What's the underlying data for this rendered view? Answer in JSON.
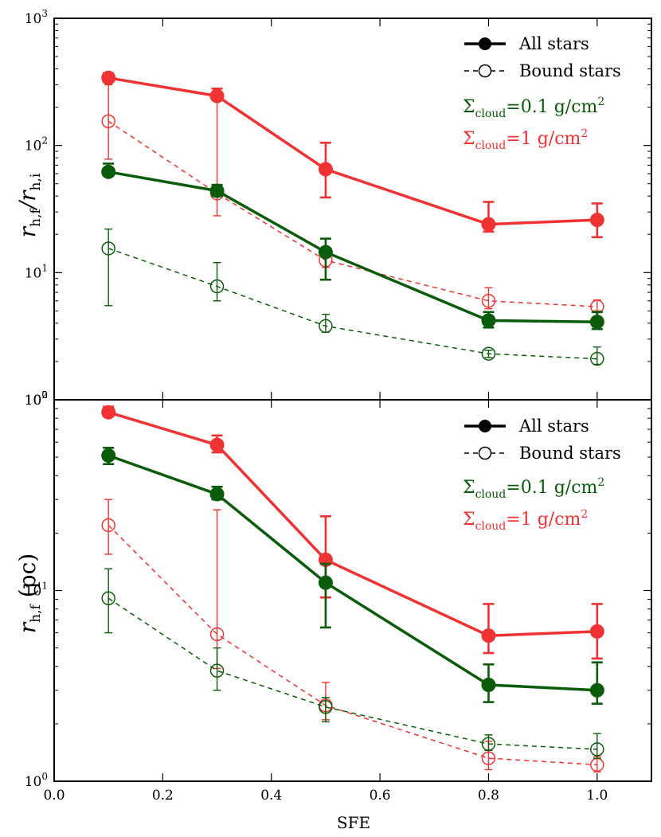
{
  "chart_data": [
    {
      "type": "line",
      "panel": "top",
      "ylabel": "r_h,f / r_h,i",
      "yscale": "log",
      "ylim": [
        1,
        1000
      ],
      "xlim": [
        0,
        1.1
      ],
      "yticks": [
        {
          "value": 1,
          "mant": "10",
          "exp": "0"
        },
        {
          "value": 10,
          "mant": "10",
          "exp": "1"
        },
        {
          "value": 100,
          "mant": "10",
          "exp": "2"
        },
        {
          "value": 1000,
          "mant": "10",
          "exp": "3"
        }
      ],
      "legend": {
        "position": "top-right",
        "all_label": "All stars",
        "bound_label": "Bound stars",
        "sigma_green_value": "=0.1 g/cm",
        "sigma_red_value": "=1 g/cm",
        "sigma_sub": "cloud",
        "sigma_sym": "Σ",
        "sigma_sup": "2"
      },
      "series": [
        {
          "name": "All stars, Σ=1",
          "color": "red",
          "style": "solid",
          "x": [
            0.1,
            0.3,
            0.5,
            0.8,
            1.0
          ],
          "y": [
            340,
            245,
            65,
            24,
            26
          ],
          "err_lo": [
            315,
            235,
            39,
            21,
            19
          ],
          "err_hi": [
            370,
            280,
            105,
            36,
            35
          ]
        },
        {
          "name": "Bound stars, Σ=1",
          "color": "red",
          "style": "dashed",
          "x": [
            0.1,
            0.3,
            0.5,
            0.8,
            1.0
          ],
          "y": [
            155,
            42,
            12.5,
            6.0,
            5.4
          ],
          "err_lo": [
            78,
            28,
            11.0,
            5.2,
            5.0
          ],
          "err_hi": [
            300,
            240,
            15.5,
            7.6,
            6.1
          ]
        },
        {
          "name": "All stars, Σ=0.1",
          "color": "green",
          "style": "solid",
          "x": [
            0.1,
            0.3,
            0.5,
            0.8,
            1.0
          ],
          "y": [
            62,
            44,
            14.5,
            4.2,
            4.1
          ],
          "err_lo": [
            58,
            40,
            8.8,
            3.7,
            3.6
          ],
          "err_hi": [
            72,
            49,
            18.5,
            4.9,
            4.9
          ]
        },
        {
          "name": "Bound stars, Σ=0.1",
          "color": "green",
          "style": "dashed",
          "x": [
            0.1,
            0.3,
            0.5,
            0.8,
            1.0
          ],
          "y": [
            15.5,
            7.8,
            3.8,
            2.3,
            2.1
          ],
          "err_lo": [
            5.5,
            6.0,
            3.4,
            2.15,
            1.9
          ],
          "err_hi": [
            22,
            12,
            4.7,
            2.45,
            2.6
          ]
        }
      ]
    },
    {
      "type": "line",
      "panel": "bottom",
      "ylabel": "r_h,f (pc)",
      "xlabel": "SFE",
      "yscale": "log",
      "ylim": [
        1,
        100
      ],
      "xlim": [
        0,
        1.1
      ],
      "xticks": [
        "0.0",
        "0.2",
        "0.4",
        "0.6",
        "0.8",
        "1.0"
      ],
      "yticks": [
        {
          "value": 1,
          "mant": "10",
          "exp": "0"
        },
        {
          "value": 10,
          "mant": "10",
          "exp": "1"
        },
        {
          "value": 100,
          "mant": "10",
          "exp": "2"
        }
      ],
      "legend": {
        "position": "top-right",
        "all_label": "All stars",
        "bound_label": "Bound stars",
        "sigma_green_value": "=0.1 g/cm",
        "sigma_red_value": "=1 g/cm",
        "sigma_sub": "cloud",
        "sigma_sym": "Σ",
        "sigma_sup": "2"
      },
      "series": [
        {
          "name": "All stars, Σ=1",
          "color": "red",
          "style": "solid",
          "x": [
            0.1,
            0.3,
            0.5,
            0.8,
            1.0
          ],
          "y": [
            86,
            58,
            14.5,
            5.8,
            6.1
          ],
          "err_lo": [
            82,
            53,
            9.2,
            4.7,
            4.4
          ],
          "err_hi": [
            92,
            65,
            24.5,
            8.5,
            8.5
          ]
        },
        {
          "name": "Bound stars, Σ=1",
          "color": "red",
          "style": "dashed",
          "x": [
            0.1,
            0.3,
            0.5,
            0.8,
            1.0
          ],
          "y": [
            22,
            5.9,
            2.5,
            1.32,
            1.22
          ],
          "err_lo": [
            15.5,
            3.9,
            2.1,
            1.15,
            1.12
          ],
          "err_hi": [
            30,
            26.5,
            3.3,
            1.62,
            1.35
          ]
        },
        {
          "name": "All stars, Σ=0.1",
          "color": "green",
          "style": "solid",
          "x": [
            0.1,
            0.3,
            0.5,
            0.8,
            1.0
          ],
          "y": [
            51,
            32,
            11,
            3.2,
            3.0
          ],
          "err_lo": [
            46,
            30,
            6.4,
            2.6,
            2.55
          ],
          "err_hi": [
            56,
            35,
            13.8,
            4.1,
            4.2
          ]
        },
        {
          "name": "Bound stars, Σ=0.1",
          "color": "green",
          "style": "dashed",
          "x": [
            0.1,
            0.3,
            0.5,
            0.8,
            1.0
          ],
          "y": [
            9.1,
            3.8,
            2.45,
            1.57,
            1.47
          ],
          "err_lo": [
            6.0,
            3.0,
            2.05,
            1.45,
            1.32
          ],
          "err_hi": [
            13,
            5.0,
            2.75,
            1.75,
            1.78
          ]
        }
      ]
    }
  ],
  "colors": {
    "red": "#f03232",
    "green": "#0a5c0a"
  }
}
